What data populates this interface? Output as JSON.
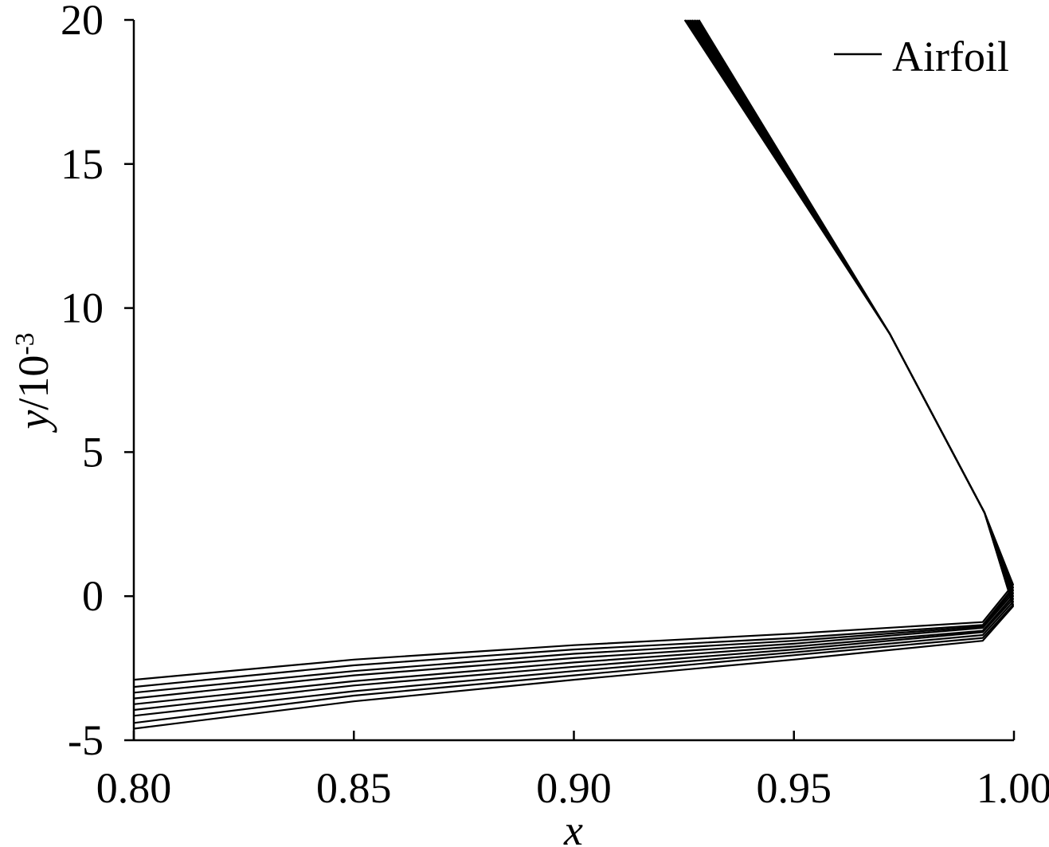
{
  "chart_data": {
    "type": "line",
    "title": "",
    "xlabel": "x",
    "ylabel": {
      "main": "y",
      "rest": "/10",
      "sup": "-3"
    },
    "xlim": [
      0.8,
      1.0
    ],
    "ylim": [
      -5,
      20
    ],
    "x_ticks": [
      0.8,
      0.85,
      0.9,
      0.95,
      1.0
    ],
    "x_tick_labels": [
      "0.80",
      "0.85",
      "0.90",
      "0.95",
      "1.00"
    ],
    "y_ticks": [
      -5,
      0,
      5,
      10,
      15,
      20
    ],
    "y_tick_labels": [
      "-5",
      "0",
      "5",
      "10",
      "15",
      "20"
    ],
    "grid": false,
    "legend": {
      "position": "top-right",
      "entries": [
        "Airfoil"
      ]
    },
    "series": [
      {
        "name": "Airfoil",
        "color": "#000000",
        "x": [
          0.9252,
          0.9718,
          0.9933,
          0.9998,
          0.9929,
          0.95,
          0.9,
          0.85,
          0.8
        ],
        "y": [
          20,
          9.1,
          2.9,
          0.4,
          -0.9,
          -1.3,
          -1.7,
          -2.2,
          -2.9
        ]
      },
      {
        "color": "#000000",
        "x": [
          0.9256,
          0.9718,
          0.9933,
          0.9998,
          0.9929,
          0.95,
          0.9,
          0.85,
          0.8
        ],
        "y": [
          20,
          9.1,
          2.9,
          0.3,
          -1.0,
          -1.45,
          -1.85,
          -2.4,
          -3.15
        ]
      },
      {
        "color": "#000000",
        "x": [
          0.926,
          0.9718,
          0.9933,
          0.9998,
          0.9929,
          0.95,
          0.9,
          0.85,
          0.8
        ],
        "y": [
          20,
          9.1,
          2.9,
          0.2,
          -1.05,
          -1.55,
          -2.0,
          -2.6,
          -3.35
        ]
      },
      {
        "color": "#000000",
        "x": [
          0.9264,
          0.9718,
          0.9933,
          0.9998,
          0.9929,
          0.95,
          0.9,
          0.85,
          0.8
        ],
        "y": [
          20,
          9.1,
          2.9,
          0.1,
          -1.1,
          -1.65,
          -2.15,
          -2.75,
          -3.55
        ]
      },
      {
        "color": "#000000",
        "x": [
          0.9268,
          0.9718,
          0.9933,
          0.9998,
          0.9929,
          0.95,
          0.9,
          0.85,
          0.8
        ],
        "y": [
          20,
          9.1,
          2.9,
          0.0,
          -1.2,
          -1.75,
          -2.3,
          -2.95,
          -3.75
        ]
      },
      {
        "color": "#000000",
        "x": [
          0.9272,
          0.9718,
          0.9933,
          0.9998,
          0.9929,
          0.95,
          0.9,
          0.85,
          0.8
        ],
        "y": [
          20,
          9.1,
          2.9,
          -0.1,
          -1.25,
          -1.85,
          -2.45,
          -3.1,
          -3.95
        ]
      },
      {
        "color": "#000000",
        "x": [
          0.9276,
          0.9718,
          0.9933,
          0.9998,
          0.9929,
          0.95,
          0.9,
          0.85,
          0.8
        ],
        "y": [
          20,
          9.1,
          2.9,
          -0.2,
          -1.35,
          -1.95,
          -2.6,
          -3.3,
          -4.15
        ]
      },
      {
        "color": "#000000",
        "x": [
          0.928,
          0.9718,
          0.9933,
          0.9998,
          0.9929,
          0.95,
          0.9,
          0.85,
          0.8
        ],
        "y": [
          20,
          9.1,
          2.9,
          -0.3,
          -1.45,
          -2.05,
          -2.75,
          -3.45,
          -4.4
        ]
      },
      {
        "color": "#000000",
        "x": [
          0.9284,
          0.9718,
          0.9933,
          0.9998,
          0.9929,
          0.95,
          0.9,
          0.85,
          0.8
        ],
        "y": [
          20,
          9.1,
          2.9,
          -0.35,
          -1.55,
          -2.2,
          -2.9,
          -3.65,
          -4.6
        ]
      }
    ]
  }
}
